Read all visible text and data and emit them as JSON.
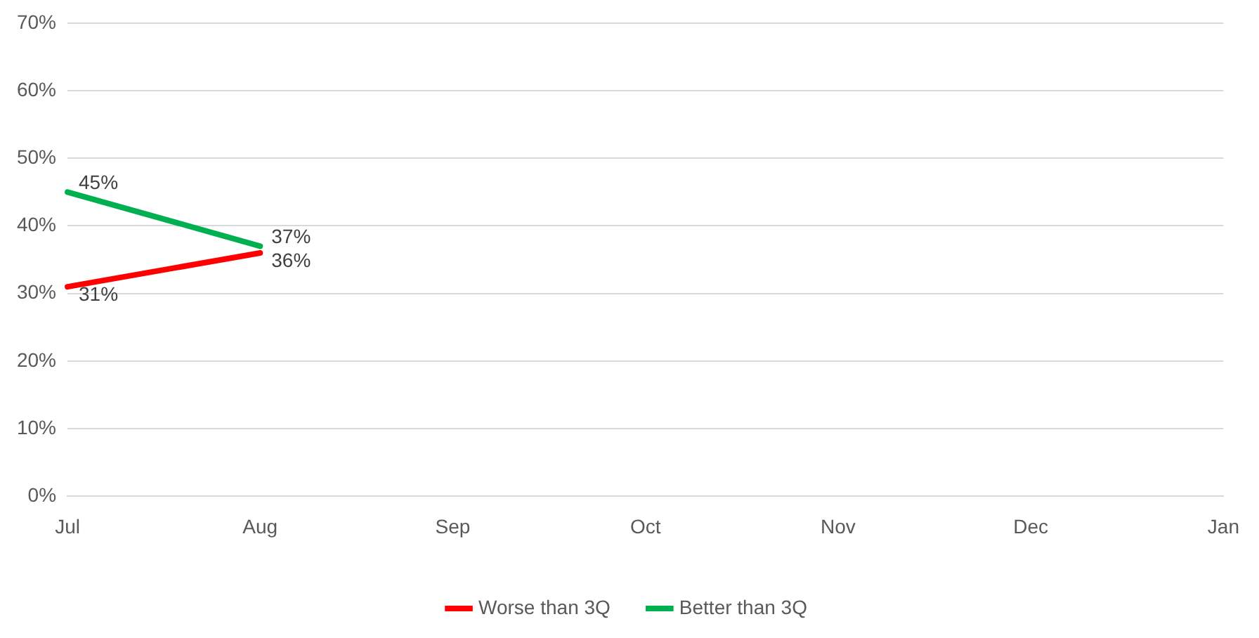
{
  "chart_data": {
    "type": "line",
    "categories": [
      "Jul",
      "Aug",
      "Sep",
      "Oct",
      "Nov",
      "Dec",
      "Jan"
    ],
    "series": [
      {
        "name": "Worse than 3Q",
        "color": "#ff0000",
        "values": [
          31,
          36,
          null,
          null,
          null,
          null,
          null
        ],
        "value_labels": [
          "31%",
          "36%",
          null,
          null,
          null,
          null,
          null
        ]
      },
      {
        "name": "Better than 3Q",
        "color": "#00b050",
        "values": [
          45,
          37,
          null,
          null,
          null,
          null,
          null
        ],
        "value_labels": [
          "45%",
          "37%",
          null,
          null,
          null,
          null,
          null
        ]
      }
    ],
    "ylim": [
      0,
      70
    ],
    "yticks": [
      {
        "value": 0,
        "label": "0%"
      },
      {
        "value": 10,
        "label": "10%"
      },
      {
        "value": 20,
        "label": "20%"
      },
      {
        "value": 30,
        "label": "30%"
      },
      {
        "value": 40,
        "label": "40%"
      },
      {
        "value": 50,
        "label": "50%"
      },
      {
        "value": 60,
        "label": "60%"
      },
      {
        "value": 70,
        "label": "70%"
      }
    ],
    "grid": "y",
    "legend": "bottom",
    "marker": "none",
    "line_style": "solid"
  }
}
